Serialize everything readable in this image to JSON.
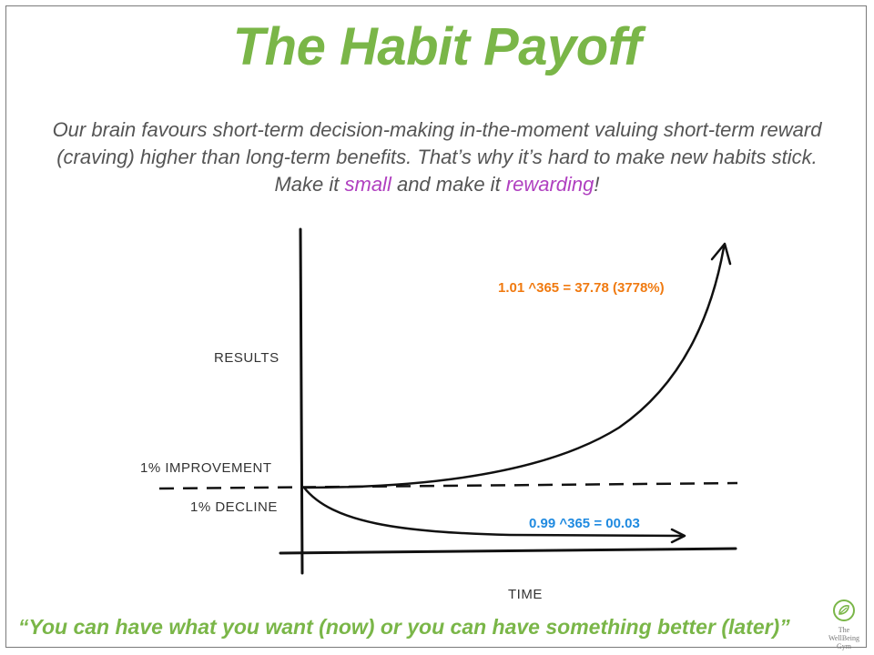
{
  "page": {
    "title": "The Habit Payoff",
    "intro": {
      "part1": "Our brain favours short-term decision-making in-the-moment valuing  short-term reward (craving) higher than long-term benefits. That’s why it’s hard to make new habits stick. Make it ",
      "word_small": "small",
      "part2": " and make it ",
      "word_rewarding": "rewarding",
      "part3": "!"
    },
    "quote": "“You can have what you want (now) or you can have something better (later)”",
    "logo": {
      "icon": "leaf-circle-icon",
      "line1": "The",
      "line2": "WellBeing",
      "line3": "Gym"
    }
  },
  "colors": {
    "title_green": "#7ab648",
    "accent_purple": "#b040c0",
    "orange": "#f07a10",
    "blue": "#1f8ae0",
    "ink": "#111111"
  },
  "diagram": {
    "y_axis_label": "RESULTS",
    "x_axis_label": "TIME",
    "improvement_label": "1% IMPROVEMENT",
    "decline_label": "1% DECLINE",
    "growth_formula": "1.01 ^365 = 37.78 (3778%)",
    "decline_formula": "0.99 ^365 = 00.03"
  }
}
